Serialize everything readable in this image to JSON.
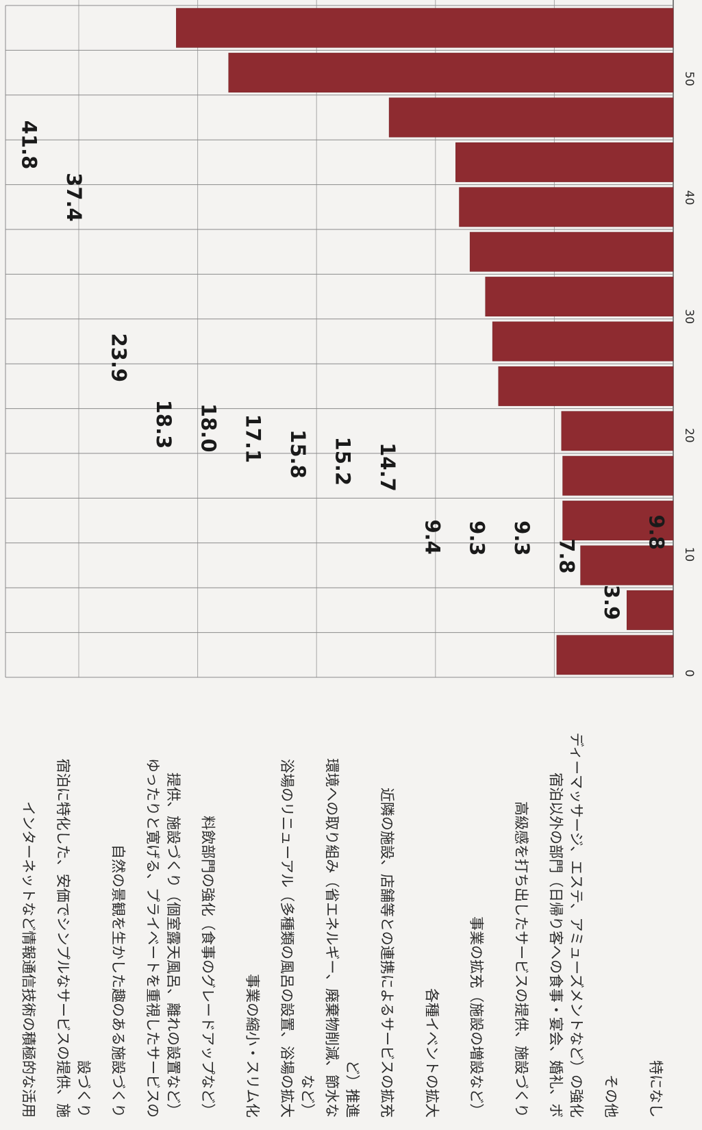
{
  "chart_data": {
    "type": "bar",
    "orientation": "rotated-90-clockwise",
    "categories": [
      "インターネットなど情報通信技術の積極的な活用",
      "宿泊に特化した、安価でシンプルなサービスの提供、施設づくり",
      "自然の景観を生かした趣のある施設づくり",
      "ゆったりと寛げる、プライベートを重視したサービスの提供、施設づくり（個室露天風呂、離れの設置など）",
      "料飲部門の強化（食事のグレードアップなど）",
      "事業の縮小・スリム化",
      "浴場のリニューアル（多種類の風呂の設置、浴場の拡大など）",
      "環境への取り組み（省エネルギー、廃棄物削減、節水など）推進",
      "近隣の施設、店舗等との連携によるサービスの拡充",
      "各種イベントの拡大",
      "事業の拡充（施設の増設など）",
      "高級感を打ち出したサービスの提供、施設づくり",
      "宿泊以外の部門（日帰り客への食事・宴会、婚礼、ボディーマッサージ、エステ、アミューズメントなど）の強化",
      "その他",
      "特になし"
    ],
    "label_lines": [
      [
        "インターネットなど情報通信技術の積極的な活用"
      ],
      [
        "宿泊に特化した、安価でシンプルなサービスの提供、施",
        "設づくり"
      ],
      [
        "自然の景観を生かした趣のある施設づくり"
      ],
      [
        "ゆったりと寛げる、プライベートを重視したサービスの",
        "提供、施設づくり（個室露天風呂、離れの設置など）"
      ],
      [
        "料飲部門の強化（食事のグレードアップなど）"
      ],
      [
        "事業の縮小・スリム化"
      ],
      [
        "浴場のリニューアル（多種類の風呂の設置、浴場の拡大",
        "など）"
      ],
      [
        "環境への取り組み（省エネルギー、廃棄物削減、節水な",
        "ど）推進"
      ],
      [
        "近隣の施設、店舗等との連携によるサービスの拡充"
      ],
      [
        "各種イベントの拡大"
      ],
      [
        "事業の拡充（施設の増設など）"
      ],
      [
        "高級感を打ち出したサービスの提供、施設づくり"
      ],
      [
        "宿泊以外の部門（日帰り客への食事・宴会、婚礼、ボ",
        "ディーマッサージ、エステ、アミューズメントなど）の強化"
      ],
      [
        "その他"
      ],
      [
        "特になし"
      ]
    ],
    "values": [
      41.8,
      37.4,
      23.9,
      18.3,
      18.0,
      17.1,
      15.8,
      15.2,
      14.7,
      9.4,
      9.3,
      9.3,
      7.8,
      3.9,
      9.8
    ],
    "value_labels": [
      "41.8",
      "37.4",
      "23.9",
      "18.3",
      "18.0",
      "17.1",
      "15.8",
      "15.2",
      "14.7",
      "9.4",
      "9.3",
      "9.3",
      "7.8",
      "3.9",
      "9.8"
    ],
    "ylim": [
      0,
      50
    ],
    "yticks": [
      0,
      10,
      20,
      30,
      40,
      50
    ],
    "ytick_labels": [
      "0",
      "10",
      "20",
      "30",
      "40",
      "50"
    ],
    "grid": true,
    "title": "",
    "xlabel": "",
    "ylabel": ""
  },
  "colors": {
    "bar": "#8e2b30",
    "bar_edge": "#6e1f24",
    "grid": "#a7a7a7",
    "text": "#2b2b2b",
    "value_text": "#1a1a1a",
    "background": "#f4f3f1"
  }
}
